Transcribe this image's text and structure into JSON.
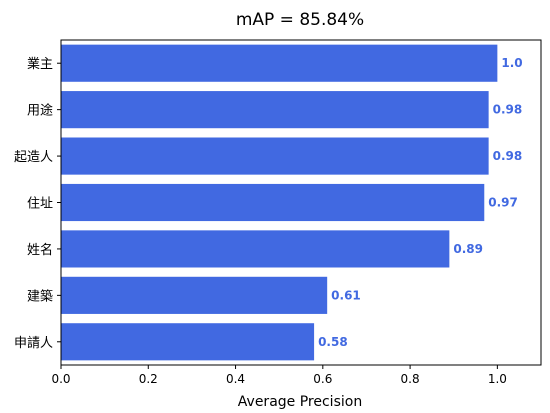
{
  "chart_data": {
    "type": "bar",
    "orientation": "horizontal",
    "title": "mAP = 85.84%",
    "xlabel": "Average Precision",
    "ylabel": "",
    "categories": [
      "業主",
      "用途",
      "起造人",
      "住址",
      "姓名",
      "建築",
      "申請人"
    ],
    "values": [
      1.0,
      0.98,
      0.98,
      0.97,
      0.89,
      0.61,
      0.58
    ],
    "value_labels": [
      "1.0",
      "0.98",
      "0.98",
      "0.97",
      "0.89",
      "0.61",
      "0.58"
    ],
    "xlim": [
      0.0,
      1.1
    ],
    "xticks": [
      0.0,
      0.2,
      0.4,
      0.6,
      0.8,
      1.0
    ],
    "xtick_labels": [
      "0.0",
      "0.2",
      "0.4",
      "0.6",
      "0.8",
      "1.0"
    ],
    "grid": false,
    "bar_color": "#4169e1",
    "label_color": "#4169e1"
  }
}
